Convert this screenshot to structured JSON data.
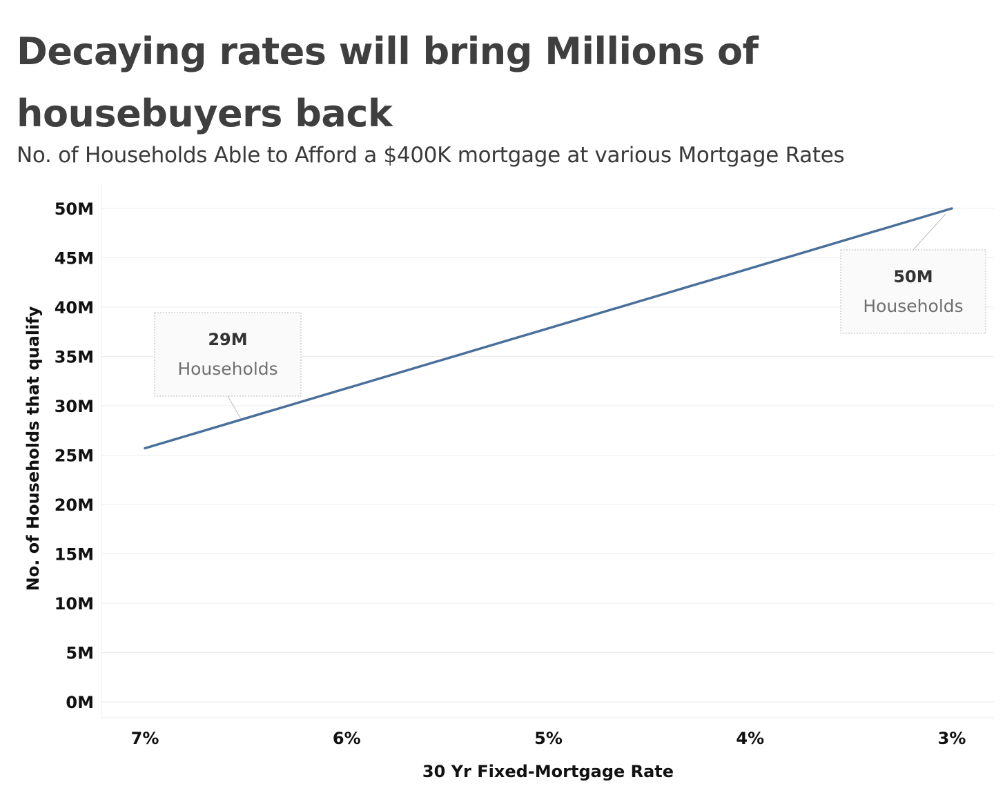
{
  "title": "Decaying rates will bring Millions of housebuyers back",
  "subtitle": "No. of Households Able to Afford a $400K mortgage at various Mortgage Rates",
  "chart_data": {
    "type": "line",
    "xlabel": "30 Yr Fixed-Mortgage Rate",
    "ylabel": "No. of Households that qualify",
    "x": [
      7,
      6,
      5,
      4,
      3
    ],
    "x_tick_labels": [
      "7%",
      "6%",
      "5%",
      "4%",
      "3%"
    ],
    "x_reversed": true,
    "y_ticks": [
      0,
      5,
      10,
      15,
      20,
      25,
      30,
      35,
      40,
      45,
      50
    ],
    "y_tick_labels": [
      "0M",
      "5M",
      "10M",
      "15M",
      "20M",
      "25M",
      "30M",
      "35M",
      "40M",
      "45M",
      "50M"
    ],
    "ylim": [
      0,
      50
    ],
    "grid": true,
    "series": [
      {
        "x": [
          7,
          3
        ],
        "values": [
          25.7,
          50
        ]
      }
    ],
    "annotations": [
      {
        "x": 6.5,
        "y": 29,
        "value": "29M",
        "text": "Households"
      },
      {
        "x": 3,
        "y": 50,
        "value": "50M",
        "text": "Households"
      }
    ],
    "colors": {
      "line": "#4a6f9b",
      "grid": "#ececec",
      "axis_text": "#111111",
      "annotation_value": "#333333",
      "annotation_text": "#6f6f6f",
      "annotation_border": "#bbbbbb",
      "annotation_fill": "#fafafa"
    }
  }
}
